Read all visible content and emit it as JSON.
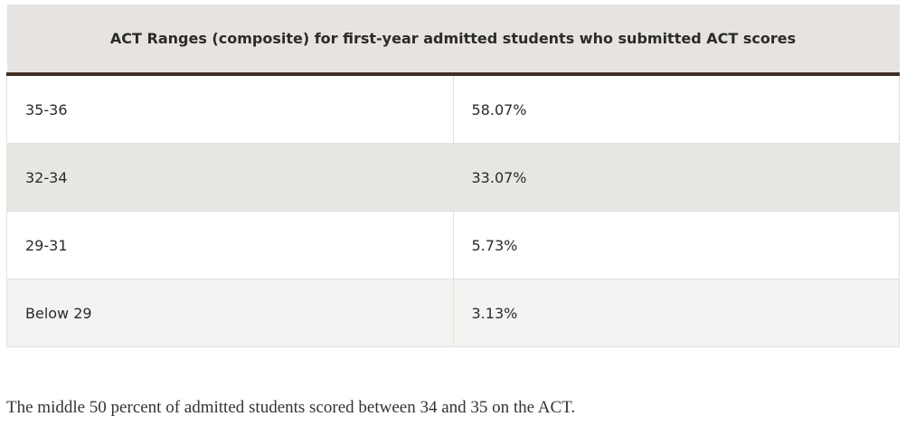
{
  "table": {
    "header": "ACT Ranges (composite) for first-year admitted students who submitted ACT scores",
    "rows": [
      [
        "35-36",
        "58.07%"
      ],
      [
        "32-34",
        "33.07%"
      ],
      [
        "29-31",
        "5.73%"
      ],
      [
        "Below 29",
        "3.13%"
      ]
    ]
  },
  "note": "The middle 50 percent of admitted students scored between 34 and 35 on the ACT."
}
